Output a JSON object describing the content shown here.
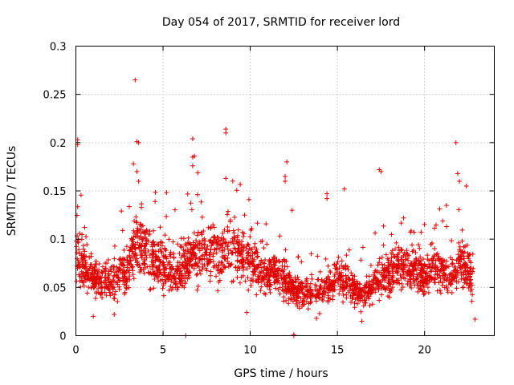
{
  "chart_data": {
    "type": "scatter",
    "title": "Day 054 of 2017, SRMTID for receiver lord",
    "xlabel": "GPS time / hours",
    "ylabel": "SRMTID / TECUs",
    "xlim": [
      0,
      24
    ],
    "ylim": [
      0,
      0.3
    ],
    "xticks": [
      0,
      5,
      10,
      15,
      20
    ],
    "xtick_labels": [
      "0",
      "5",
      "10",
      "15",
      "20"
    ],
    "yticks": [
      0,
      0.05,
      0.1,
      0.15,
      0.2,
      0.25,
      0.3
    ],
    "ytick_labels": [
      "0",
      "0.05",
      "0.1",
      "0.15",
      "0.2",
      "0.25",
      "0.3"
    ],
    "grid": true,
    "marker": "plus",
    "color": "#e00000",
    "series": [
      {
        "name": "SRMTID",
        "data_range_hours": [
          0,
          22.8
        ],
        "trend": [
          {
            "x": 0.0,
            "y": 0.085
          },
          {
            "x": 0.5,
            "y": 0.07
          },
          {
            "x": 1.0,
            "y": 0.06
          },
          {
            "x": 1.5,
            "y": 0.058
          },
          {
            "x": 2.0,
            "y": 0.055
          },
          {
            "x": 2.5,
            "y": 0.062
          },
          {
            "x": 3.0,
            "y": 0.07
          },
          {
            "x": 3.5,
            "y": 0.1
          },
          {
            "x": 4.0,
            "y": 0.09
          },
          {
            "x": 4.5,
            "y": 0.078
          },
          {
            "x": 5.0,
            "y": 0.07
          },
          {
            "x": 5.5,
            "y": 0.068
          },
          {
            "x": 6.0,
            "y": 0.068
          },
          {
            "x": 6.5,
            "y": 0.08
          },
          {
            "x": 7.0,
            "y": 0.085
          },
          {
            "x": 7.5,
            "y": 0.082
          },
          {
            "x": 8.0,
            "y": 0.085
          },
          {
            "x": 8.5,
            "y": 0.09
          },
          {
            "x": 9.0,
            "y": 0.088
          },
          {
            "x": 9.5,
            "y": 0.085
          },
          {
            "x": 10.0,
            "y": 0.08
          },
          {
            "x": 10.5,
            "y": 0.068
          },
          {
            "x": 11.0,
            "y": 0.062
          },
          {
            "x": 11.5,
            "y": 0.065
          },
          {
            "x": 12.0,
            "y": 0.055
          },
          {
            "x": 12.5,
            "y": 0.045
          },
          {
            "x": 13.0,
            "y": 0.045
          },
          {
            "x": 13.5,
            "y": 0.045
          },
          {
            "x": 14.0,
            "y": 0.045
          },
          {
            "x": 14.5,
            "y": 0.05
          },
          {
            "x": 15.0,
            "y": 0.065
          },
          {
            "x": 15.5,
            "y": 0.055
          },
          {
            "x": 16.0,
            "y": 0.045
          },
          {
            "x": 16.5,
            "y": 0.042
          },
          {
            "x": 17.0,
            "y": 0.05
          },
          {
            "x": 17.5,
            "y": 0.062
          },
          {
            "x": 18.0,
            "y": 0.068
          },
          {
            "x": 18.5,
            "y": 0.07
          },
          {
            "x": 19.0,
            "y": 0.068
          },
          {
            "x": 19.5,
            "y": 0.07
          },
          {
            "x": 20.0,
            "y": 0.06
          },
          {
            "x": 20.5,
            "y": 0.075
          },
          {
            "x": 21.0,
            "y": 0.068
          },
          {
            "x": 21.5,
            "y": 0.06
          },
          {
            "x": 22.0,
            "y": 0.072
          },
          {
            "x": 22.5,
            "y": 0.065
          },
          {
            "x": 22.8,
            "y": 0.055
          }
        ],
        "outliers": [
          {
            "x": 0.1,
            "y": 0.203
          },
          {
            "x": 0.1,
            "y": 0.198
          },
          {
            "x": 3.4,
            "y": 0.265
          },
          {
            "x": 3.5,
            "y": 0.201
          },
          {
            "x": 3.6,
            "y": 0.2
          },
          {
            "x": 3.3,
            "y": 0.178
          },
          {
            "x": 3.5,
            "y": 0.17
          },
          {
            "x": 3.6,
            "y": 0.16
          },
          {
            "x": 6.3,
            "y": 0.0
          },
          {
            "x": 6.7,
            "y": 0.204
          },
          {
            "x": 6.8,
            "y": 0.186
          },
          {
            "x": 6.7,
            "y": 0.185
          },
          {
            "x": 6.7,
            "y": 0.176
          },
          {
            "x": 8.6,
            "y": 0.214
          },
          {
            "x": 8.6,
            "y": 0.21
          },
          {
            "x": 8.6,
            "y": 0.163
          },
          {
            "x": 12.1,
            "y": 0.18
          },
          {
            "x": 12.0,
            "y": 0.165
          },
          {
            "x": 12.0,
            "y": 0.16
          },
          {
            "x": 12.4,
            "y": 0.13
          },
          {
            "x": 12.5,
            "y": 0.0
          },
          {
            "x": 12.5,
            "y": 0.001
          },
          {
            "x": 14.4,
            "y": 0.147
          },
          {
            "x": 14.4,
            "y": 0.142
          },
          {
            "x": 15.4,
            "y": 0.152
          },
          {
            "x": 17.4,
            "y": 0.172
          },
          {
            "x": 17.5,
            "y": 0.17
          },
          {
            "x": 21.8,
            "y": 0.2
          },
          {
            "x": 21.9,
            "y": 0.168
          },
          {
            "x": 22.0,
            "y": 0.16
          },
          {
            "x": 22.4,
            "y": 0.155
          },
          {
            "x": 1.0,
            "y": 0.02
          },
          {
            "x": 2.2,
            "y": 0.022
          },
          {
            "x": 9.8,
            "y": 0.024
          },
          {
            "x": 13.8,
            "y": 0.018
          },
          {
            "x": 22.9,
            "y": 0.017
          },
          {
            "x": 16.4,
            "y": 0.015
          }
        ]
      }
    ]
  }
}
